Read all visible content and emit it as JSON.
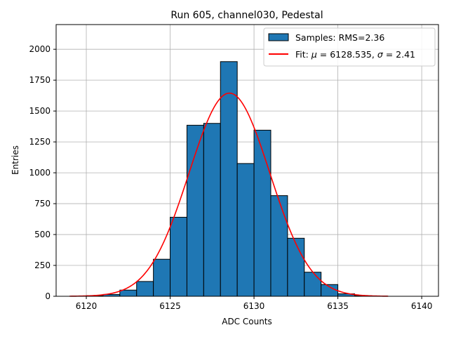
{
  "chart_data": {
    "type": "bar",
    "title": "Run 605, channel030, Pedestal",
    "xlabel": "ADC Counts",
    "ylabel": "Entries",
    "xlim": [
      6118.2,
      6141.0
    ],
    "ylim": [
      0,
      2200
    ],
    "x_ticks": [
      6120,
      6125,
      6130,
      6135,
      6140
    ],
    "y_ticks": [
      0,
      250,
      500,
      750,
      1000,
      1250,
      1500,
      1750,
      2000
    ],
    "grid": true,
    "legend_placement": "top-right",
    "bin_width": 1,
    "bins": [
      {
        "left": 6120,
        "count": 5
      },
      {
        "left": 6121,
        "count": 15
      },
      {
        "left": 6122,
        "count": 50
      },
      {
        "left": 6123,
        "count": 120
      },
      {
        "left": 6124,
        "count": 300
      },
      {
        "left": 6125,
        "count": 640
      },
      {
        "left": 6126,
        "count": 1385
      },
      {
        "left": 6127,
        "count": 1400
      },
      {
        "left": 6128,
        "count": 1900
      },
      {
        "left": 6129,
        "count": 1075
      },
      {
        "left": 6130,
        "count": 1345
      },
      {
        "left": 6131,
        "count": 815
      },
      {
        "left": 6132,
        "count": 470
      },
      {
        "left": 6133,
        "count": 195
      },
      {
        "left": 6134,
        "count": 95
      },
      {
        "left": 6135,
        "count": 20
      },
      {
        "left": 6136,
        "count": 5
      }
    ],
    "series": [
      {
        "name": "Samples: RMS=2.36",
        "kind": "histogram",
        "color": "#1f77b4",
        "edgecolor": "#000000"
      },
      {
        "name": "Fit",
        "kind": "gaussian",
        "color": "#ff0000",
        "mu": 6128.535,
        "sigma": 2.41,
        "amplitude": 1645,
        "x_range": [
          6119,
          6138
        ]
      }
    ],
    "legend_labels": {
      "hist_label": "Samples: RMS=2.36",
      "fit_prefix": "Fit: ",
      "mu_symbol": "μ",
      "mu_text": " = 6128.535, ",
      "sigma_symbol": "σ",
      "sigma_text": " = 2.41"
    }
  }
}
